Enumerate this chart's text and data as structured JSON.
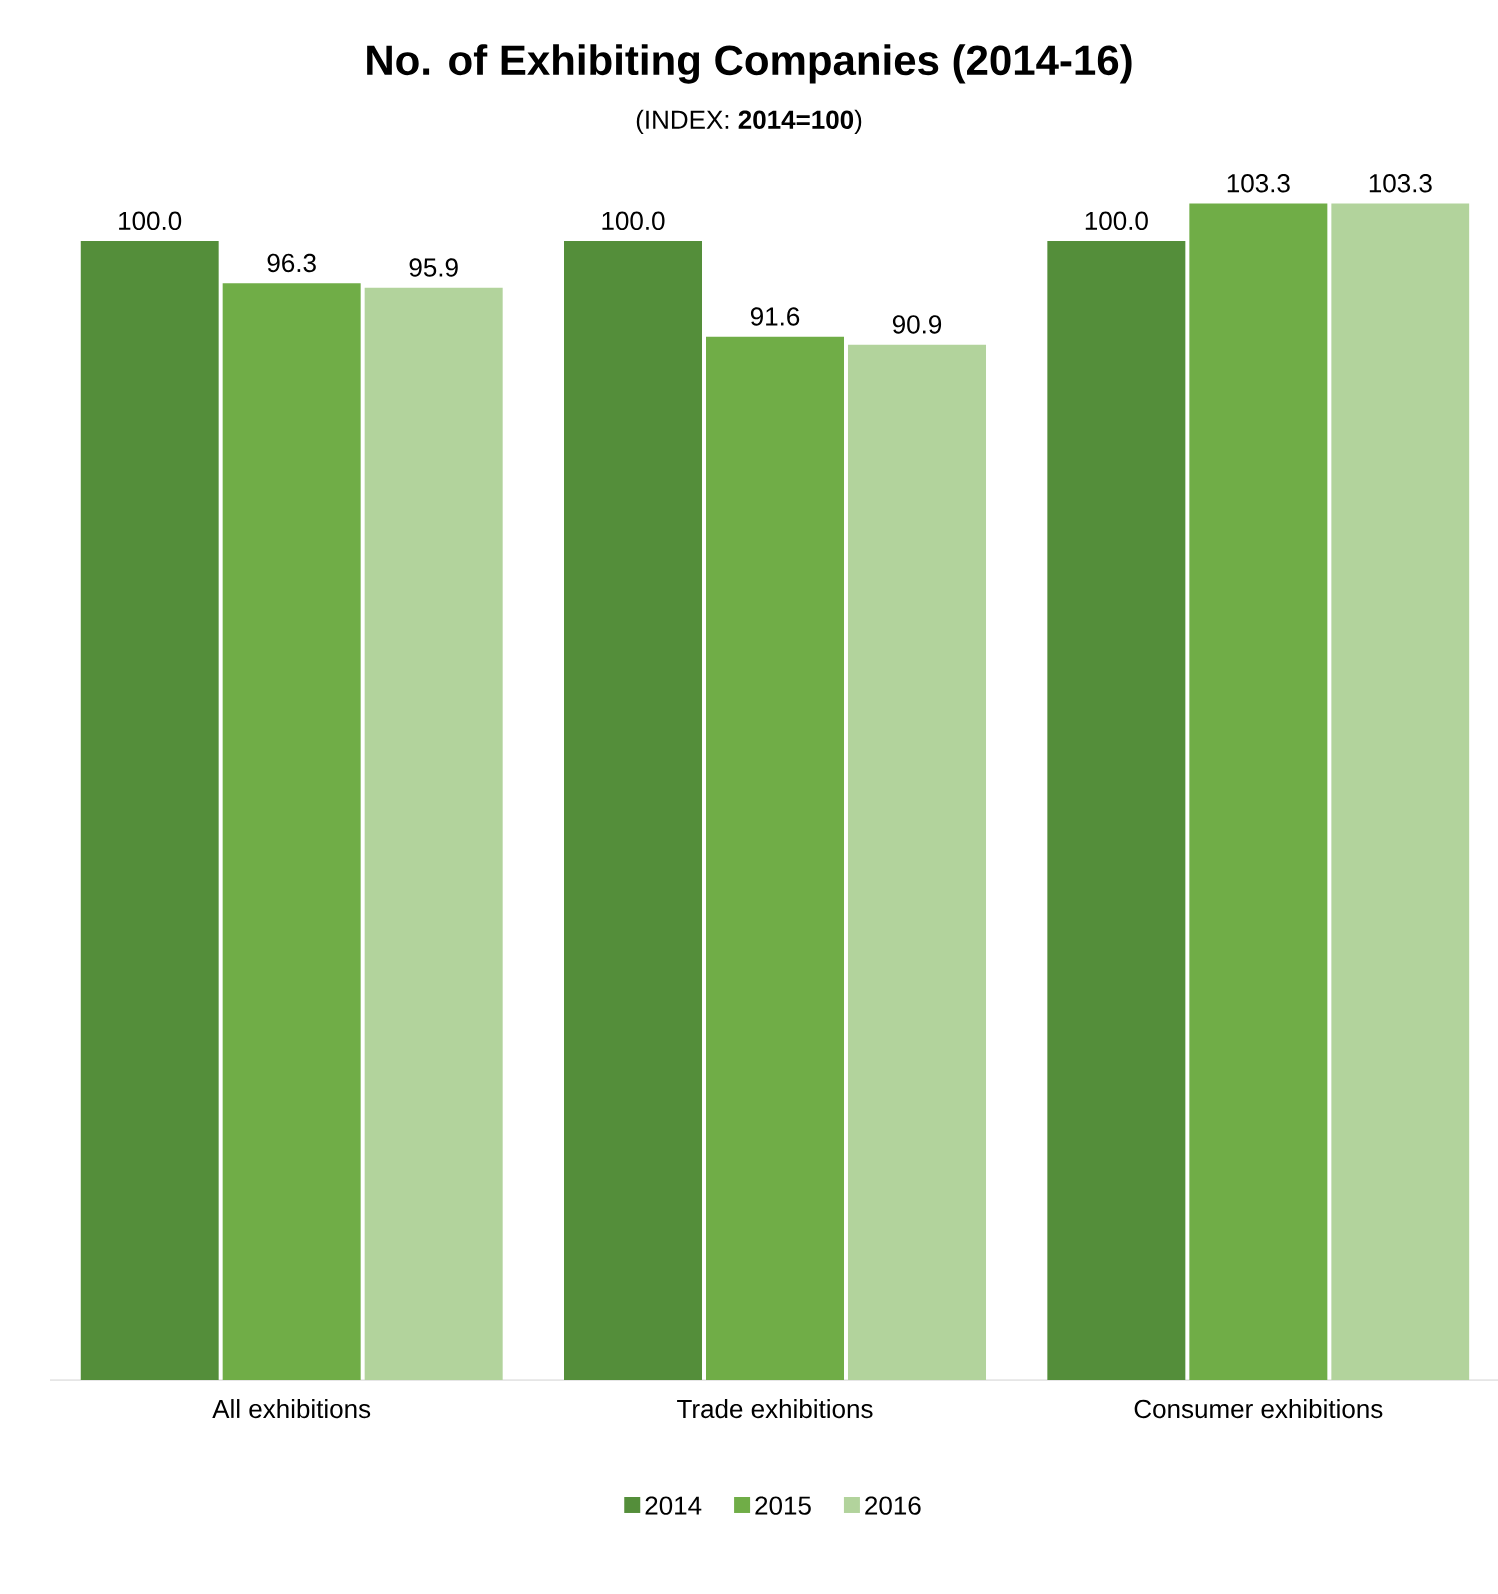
{
  "chart_data": {
    "type": "bar",
    "title": "No. of Exhibiting Companies (2014-16)",
    "subtitle": "(INDEX: **2014=100**)",
    "categories": [
      "All exhibitions",
      "Trade exhibitions",
      "Consumer exhibitions"
    ],
    "series": [
      {
        "name": "2014",
        "color": "#548e3a",
        "values": [
          100.0,
          100.0,
          100.0
        ],
        "value_labels": [
          "100.0",
          "100.0",
          "100.0"
        ]
      },
      {
        "name": "2015",
        "color": "#70ad47",
        "values": [
          96.3,
          91.6,
          103.3
        ],
        "value_labels": [
          "96.3",
          "91.6",
          "103.3"
        ]
      },
      {
        "name": "2016",
        "color": "#b2d39c",
        "values": [
          95.9,
          90.9,
          103.3
        ],
        "value_labels": [
          "95.9",
          "90.9",
          "103.3"
        ]
      }
    ],
    "legend": "bottom"
  }
}
